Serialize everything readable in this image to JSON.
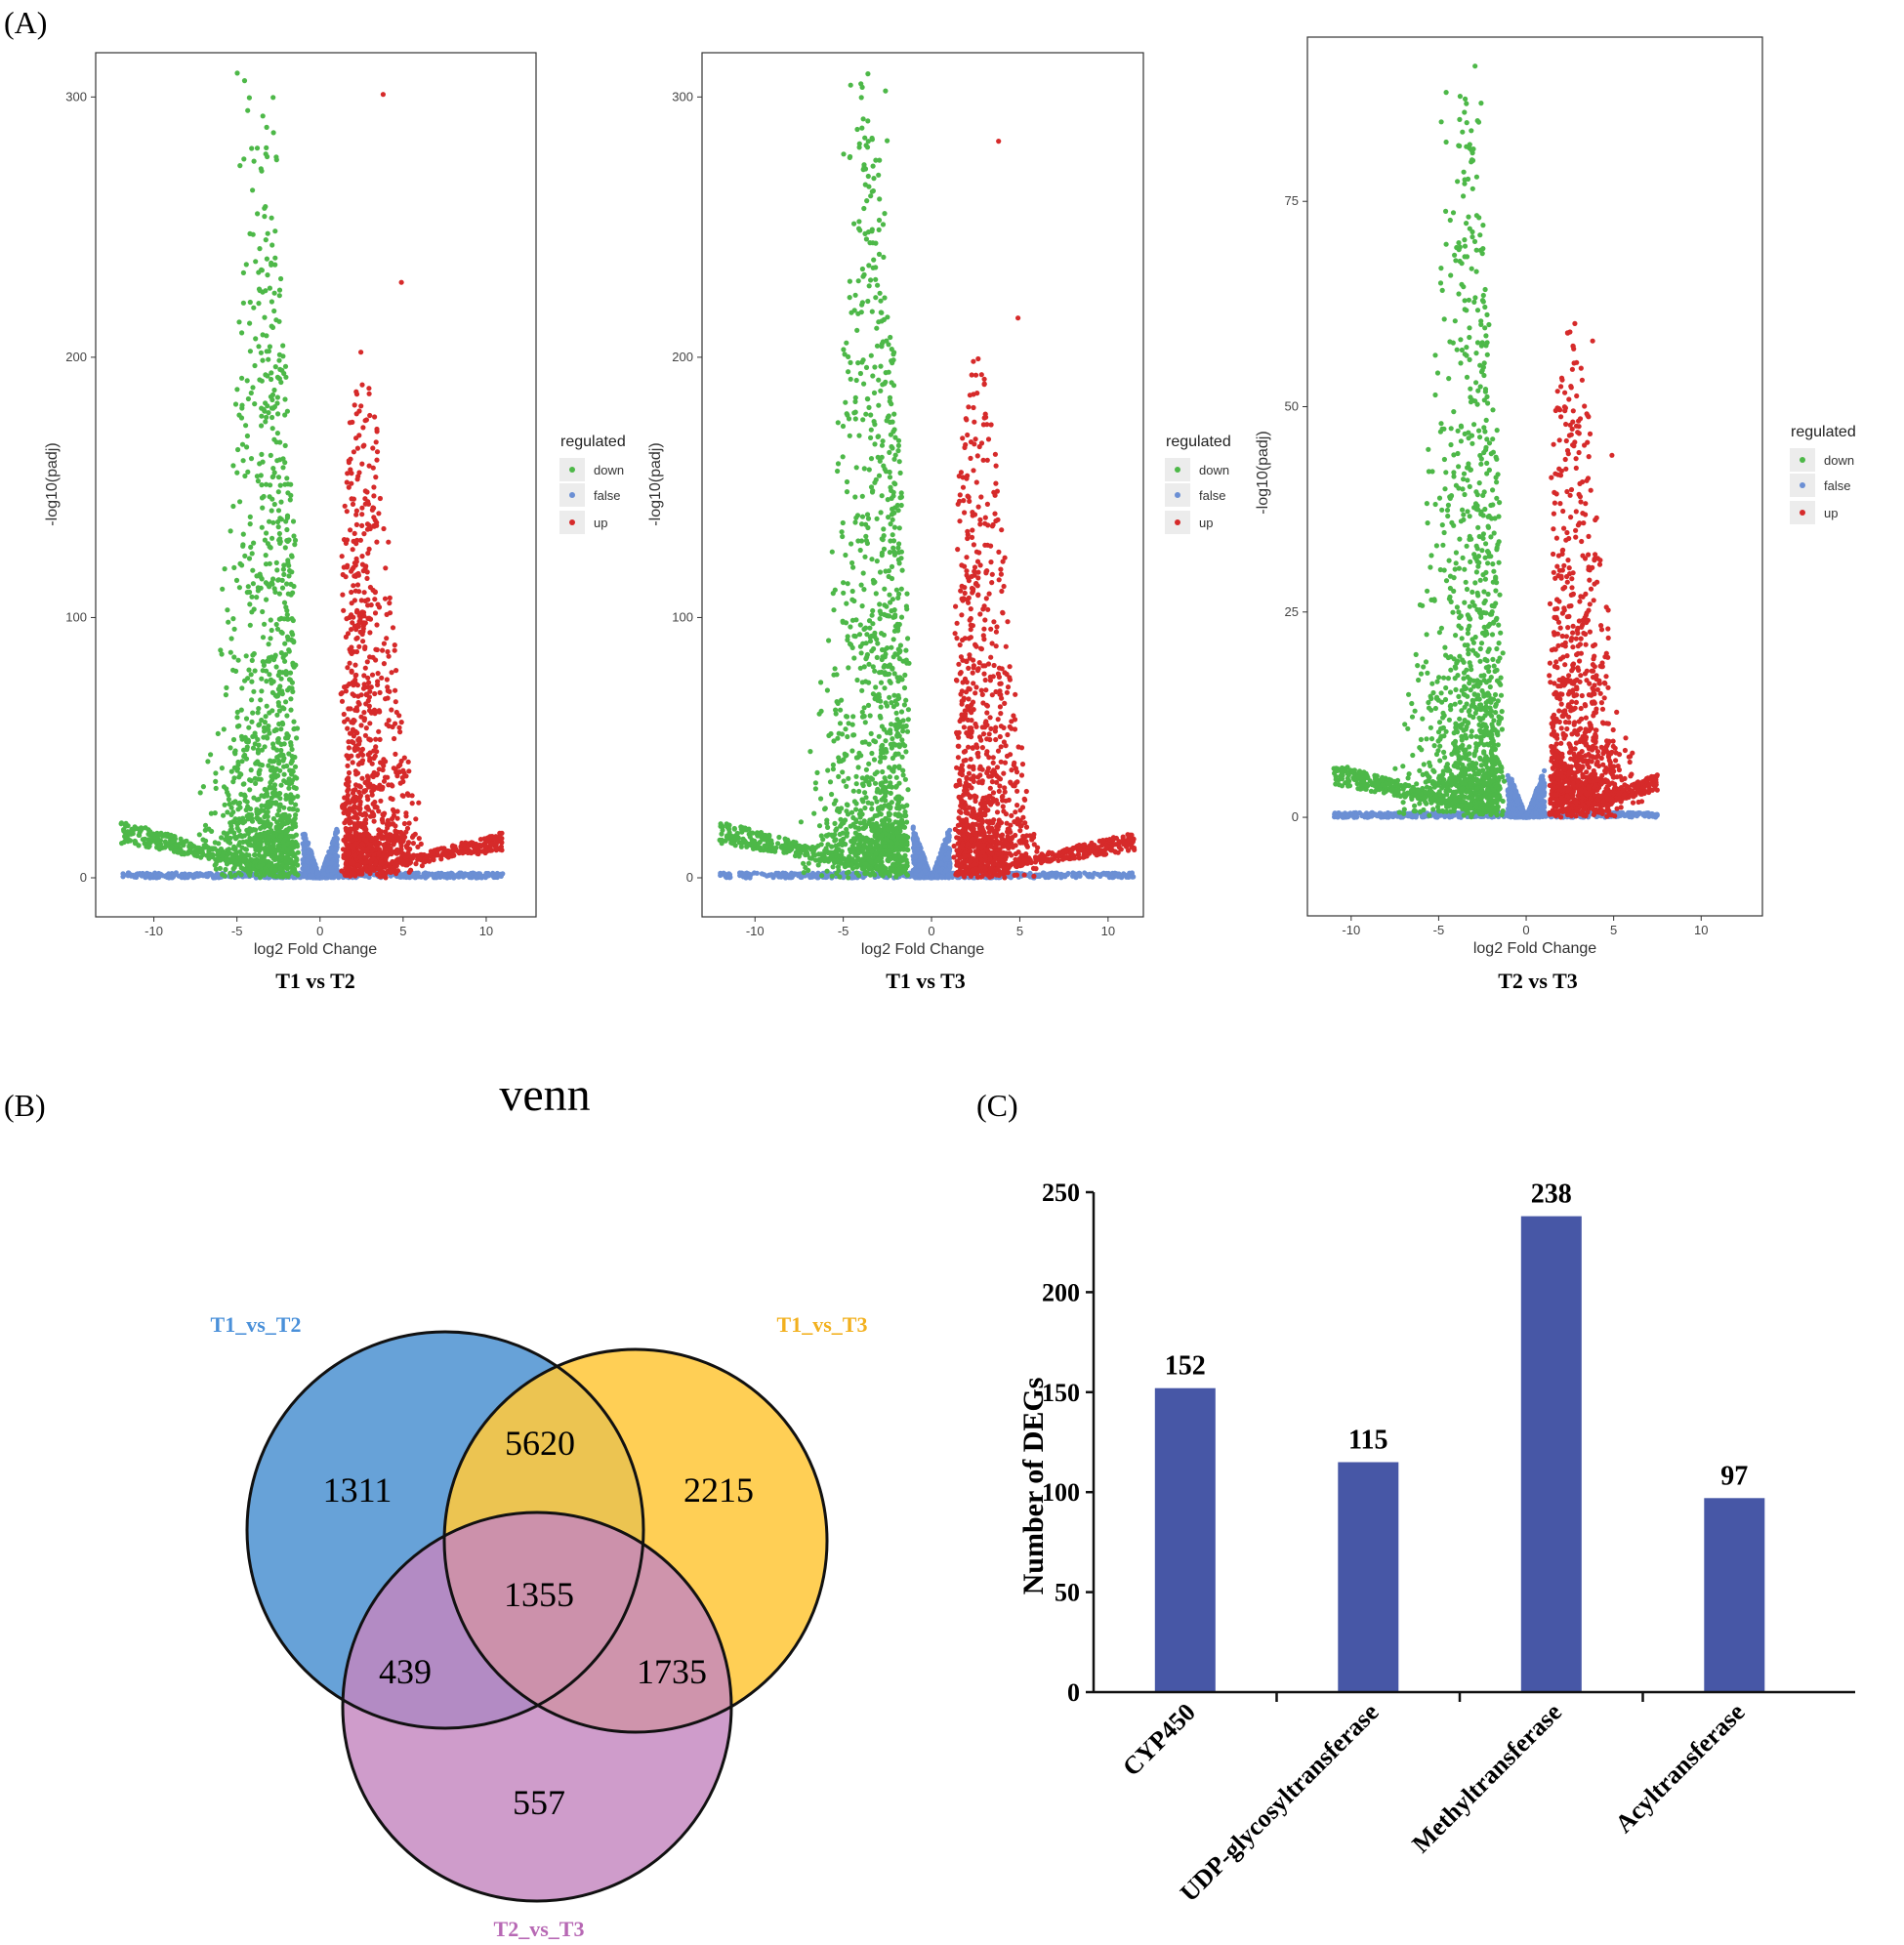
{
  "panel_labels": {
    "a": "(A)",
    "b": "(B)",
    "c": "(C)"
  },
  "colors": {
    "down": "#4db848",
    "false": "#6b8fd4",
    "up": "#d62a2a",
    "bar": "#4757a6"
  },
  "chart_data": [
    {
      "type": "scatter",
      "subtitle": "T1 vs T2",
      "xlabel": "log2 Fold Change",
      "ylabel": "-log10(padj)",
      "xlim": [
        -13.5,
        13
      ],
      "ylim": [
        -15,
        317
      ],
      "xticks": [
        -10,
        -5,
        0,
        5,
        10
      ],
      "yticks": [
        0,
        100,
        200,
        300
      ],
      "legend": {
        "title": "regulated",
        "entries": [
          "down",
          "false",
          "up"
        ],
        "placement": "right"
      },
      "peak_down": 304,
      "peak_up": 301,
      "left_edge": -12,
      "right_edge": 11,
      "ceiling": 317
    },
    {
      "type": "scatter",
      "subtitle": "T1 vs T3",
      "xlabel": "log2 Fold Change",
      "ylabel": "-log10(padj)",
      "xlim": [
        -13,
        12
      ],
      "ylim": [
        -15,
        317
      ],
      "xticks": [
        -10,
        -5,
        0,
        5,
        10
      ],
      "yticks": [
        0,
        100,
        200,
        300
      ],
      "legend": {
        "title": "regulated",
        "entries": [
          "down",
          "false",
          "up"
        ],
        "placement": "right"
      },
      "peak_down": 304,
      "peak_up": 283,
      "left_edge": -12,
      "right_edge": 11.5,
      "ceiling": 317
    },
    {
      "type": "scatter",
      "subtitle": "T2 vs T3",
      "xlabel": "log2 Fold Change",
      "ylabel": "-log10(padj)",
      "xlim": [
        -12.5,
        13.5
      ],
      "ylim": [
        -12,
        95
      ],
      "xticks": [
        -10,
        -5,
        0,
        5,
        10
      ],
      "yticks": [
        0,
        25,
        50,
        75
      ],
      "legend": {
        "title": "regulated",
        "entries": [
          "down",
          "false",
          "up"
        ],
        "placement": "right"
      },
      "peak_down": 90,
      "peak_up": 58,
      "left_edge": -11,
      "right_edge": 7.5,
      "ceiling": 95
    },
    {
      "type": "venn",
      "title": "venn",
      "sets": [
        {
          "name": "T1_vs_T2",
          "color": "#5b9bd5"
        },
        {
          "name": "T1_vs_T3",
          "color": "#ffc83d"
        },
        {
          "name": "T2_vs_T3",
          "color": "#c586c0"
        }
      ],
      "regions": {
        "only_a": "1311",
        "only_b": "2215",
        "only_c": "557",
        "ab": "5620",
        "ac": "439",
        "bc": "1735",
        "abc": "1355"
      }
    },
    {
      "type": "bar",
      "ylabel": "Number of DEGs",
      "categories": [
        "CYP450",
        "UDP-glycosyltransferase",
        "Methyltransferase",
        "Acyltransferase"
      ],
      "values": [
        152,
        115,
        238,
        97
      ],
      "ylim": [
        0,
        250
      ],
      "yticks": [
        0,
        50,
        100,
        150,
        200,
        250
      ]
    }
  ]
}
